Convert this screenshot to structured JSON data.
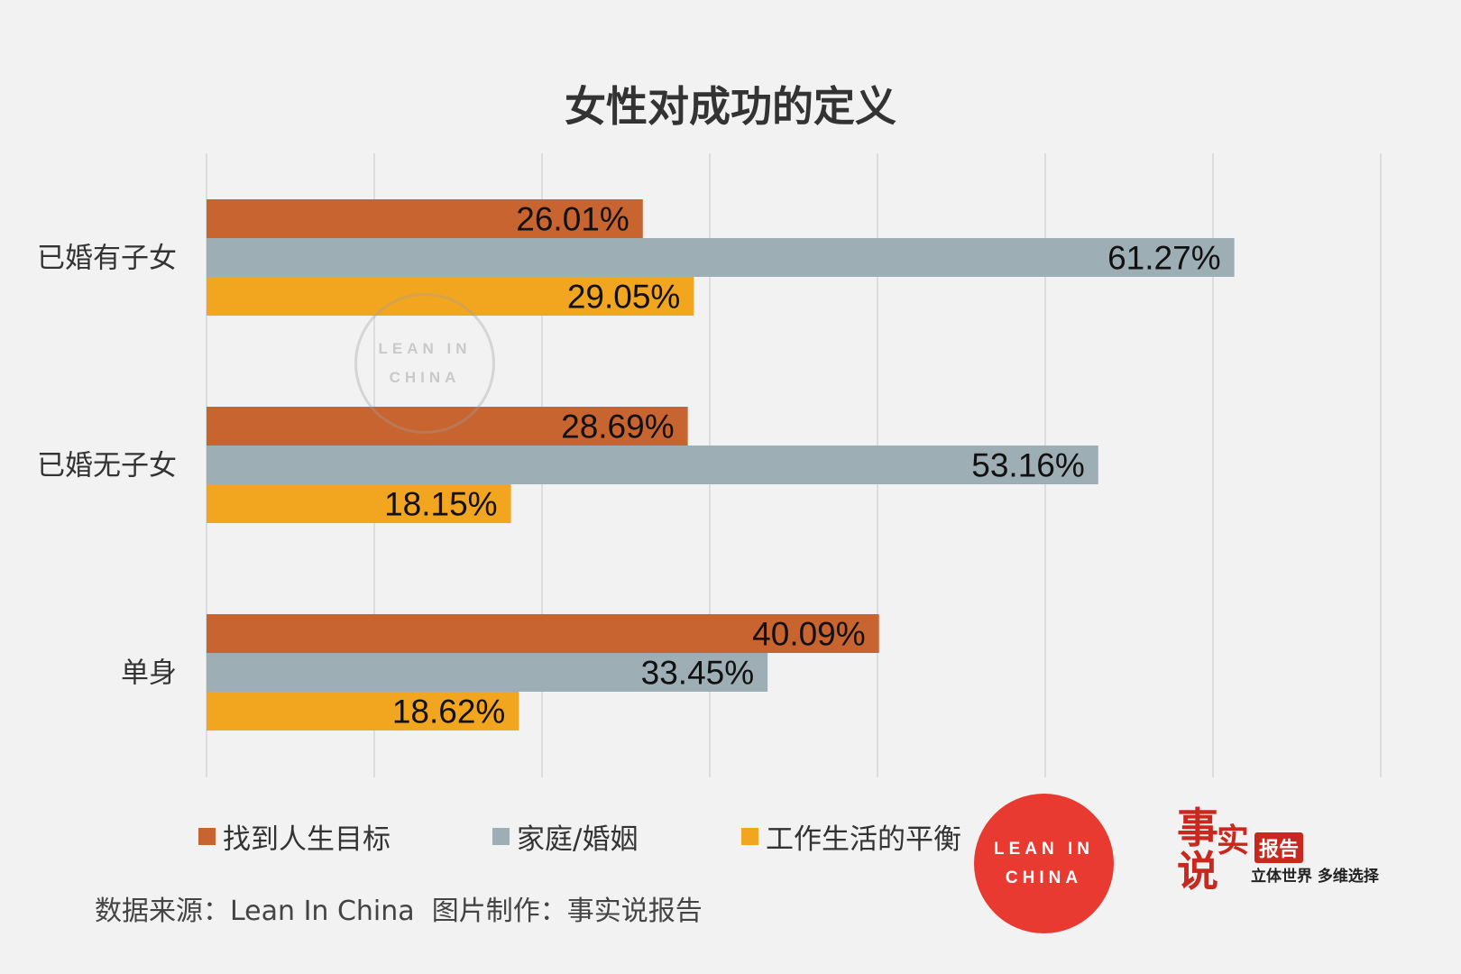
{
  "chart_data": {
    "type": "bar",
    "orientation": "horizontal",
    "title": "女性对成功的定义",
    "categories": [
      "已婚有子女",
      "已婚无子女",
      "单身"
    ],
    "series": [
      {
        "name": "找到人生目标",
        "color": "#c8642f",
        "values": [
          26.01,
          28.69,
          40.09
        ],
        "labels": [
          "26.01%",
          "28.69%",
          "40.09%"
        ]
      },
      {
        "name": "家庭/婚姻",
        "color": "#9eaeb5",
        "values": [
          61.27,
          53.16,
          33.45
        ],
        "labels": [
          "61.27%",
          "53.16%",
          "33.45%"
        ]
      },
      {
        "name": "工作生活的平衡",
        "color": "#f2a51f",
        "values": [
          29.05,
          18.15,
          18.62
        ],
        "labels": [
          "29.05%",
          "18.15%",
          "18.62%"
        ]
      }
    ],
    "xlim": [
      0,
      70
    ],
    "grid": true,
    "legend_position": "bottom",
    "xlabel": "",
    "ylabel": ""
  },
  "source_text": "数据来源：Lean In China  图片制作：事实说报告",
  "logo_lean_in": {
    "line1": "LEAN IN",
    "line2": "CHINA",
    "color": "#e83a31"
  },
  "logo_brand": {
    "char1": "事",
    "char2": "实",
    "char3": "说",
    "badge": "报告",
    "slogan": "立体世界 多维选择",
    "color": "#c8281e"
  }
}
